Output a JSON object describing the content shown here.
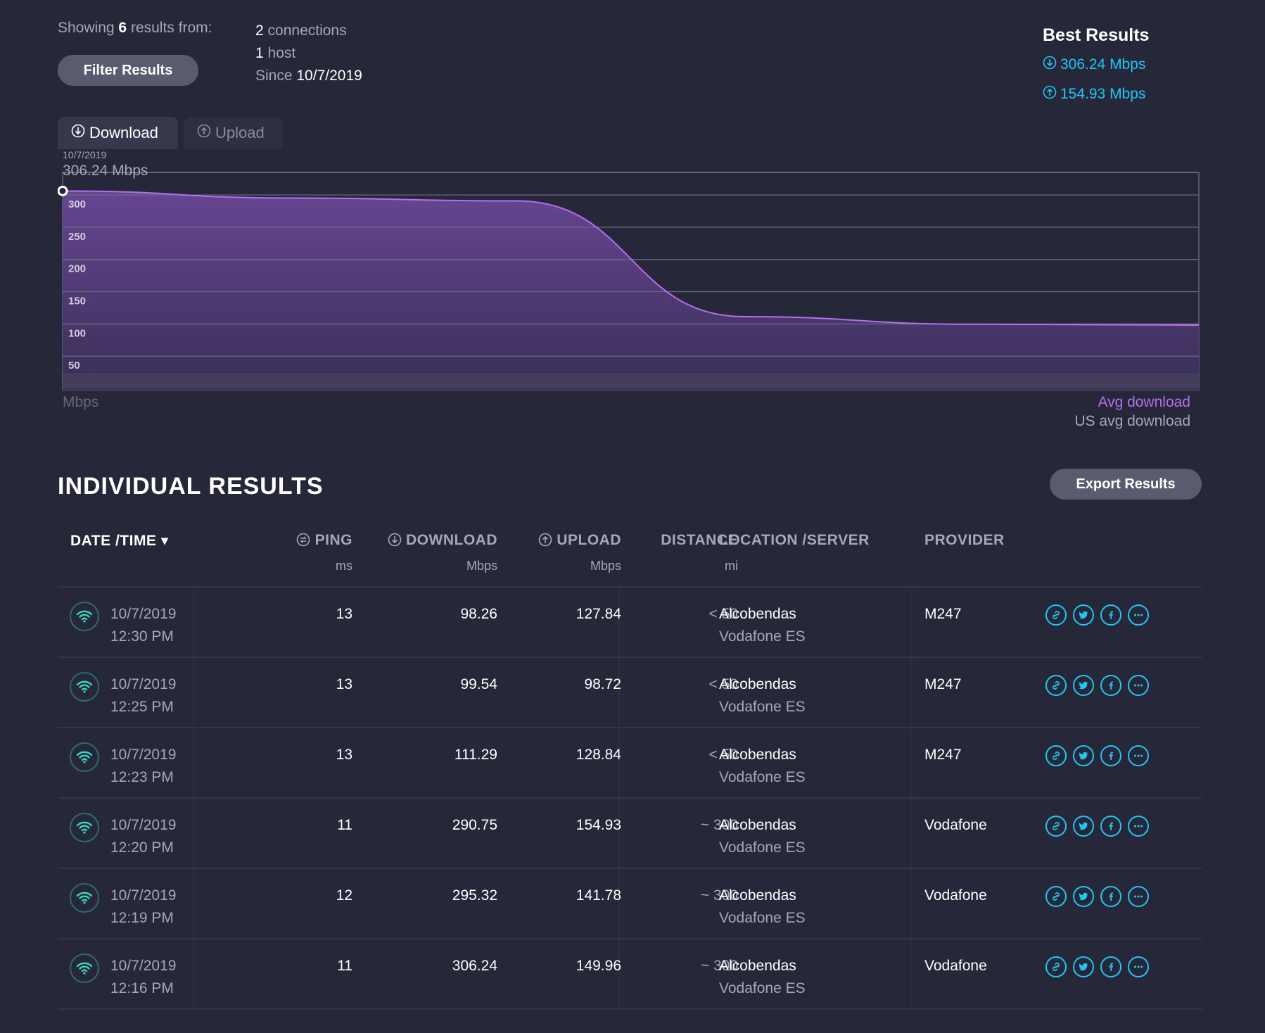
{
  "summary": {
    "showing_prefix": "Showing",
    "count": "6",
    "showing_suffix": "results from:",
    "filter_label": "Filter Results",
    "connections_num": "2",
    "connections_label": "connections",
    "hosts_num": "1",
    "hosts_label": "host",
    "since_label": "Since",
    "since_date": "10/7/2019"
  },
  "best": {
    "title": "Best Results",
    "download": "306.24 Mbps",
    "upload": "154.93 Mbps",
    "download_icon": "download-circle-icon",
    "upload_icon": "upload-circle-icon"
  },
  "tabs": [
    {
      "label": "Download",
      "icon": "download-circle-icon",
      "active": true
    },
    {
      "label": "Upload",
      "icon": "upload-circle-icon",
      "active": false
    }
  ],
  "colors": {
    "background": "#262739",
    "accent_cyan": "#1fc8f5",
    "avg_line": "#b46ff0",
    "wifi": "#36d8c4"
  },
  "chart_data": {
    "type": "area",
    "tooltip_date": "10/7/2019",
    "tooltip_value": "306.24 Mbps",
    "y_unit": "Mbps",
    "y_ticks": [
      300,
      250,
      200,
      150,
      100,
      50
    ],
    "ylim": [
      0,
      335
    ],
    "series": [
      {
        "name": "Avg download",
        "values": [
          306.24,
          295.32,
          290.75,
          111.29,
          99.54,
          98.26
        ]
      },
      {
        "name": "US avg download",
        "values": []
      }
    ]
  },
  "results": {
    "title": "INDIVIDUAL RESULTS",
    "export_label": "Export Results",
    "columns": {
      "datetime": "DATE /TIME",
      "ping": "PING",
      "ping_unit": "ms",
      "download": "DOWNLOAD",
      "download_unit": "Mbps",
      "upload": "UPLOAD",
      "upload_unit": "Mbps",
      "distance": "DISTANCE",
      "distance_unit": "mi",
      "location": "LOCATION /SERVER",
      "provider": "PROVIDER"
    },
    "rows": [
      {
        "date": "10/7/2019",
        "time": "12:30 PM",
        "ping": "13",
        "download": "98.26",
        "upload": "127.84",
        "distance": "< 50",
        "location": "Alcobendas",
        "server": "Vodafone ES",
        "provider": "M247"
      },
      {
        "date": "10/7/2019",
        "time": "12:25 PM",
        "ping": "13",
        "download": "99.54",
        "upload": "98.72",
        "distance": "< 50",
        "location": "Alcobendas",
        "server": "Vodafone ES",
        "provider": "M247"
      },
      {
        "date": "10/7/2019",
        "time": "12:23 PM",
        "ping": "13",
        "download": "111.29",
        "upload": "128.84",
        "distance": "< 50",
        "location": "Alcobendas",
        "server": "Vodafone ES",
        "provider": "M247"
      },
      {
        "date": "10/7/2019",
        "time": "12:20 PM",
        "ping": "11",
        "download": "290.75",
        "upload": "154.93",
        "distance": "~ 300",
        "location": "Alcobendas",
        "server": "Vodafone ES",
        "provider": "Vodafone"
      },
      {
        "date": "10/7/2019",
        "time": "12:19 PM",
        "ping": "12",
        "download": "295.32",
        "upload": "141.78",
        "distance": "~ 300",
        "location": "Alcobendas",
        "server": "Vodafone ES",
        "provider": "Vodafone"
      },
      {
        "date": "10/7/2019",
        "time": "12:16 PM",
        "ping": "11",
        "download": "306.24",
        "upload": "149.96",
        "distance": "~ 300",
        "location": "Alcobendas",
        "server": "Vodafone ES",
        "provider": "Vodafone"
      }
    ],
    "row_actions": [
      "link-icon",
      "twitter-icon",
      "facebook-icon",
      "more-icon"
    ]
  }
}
